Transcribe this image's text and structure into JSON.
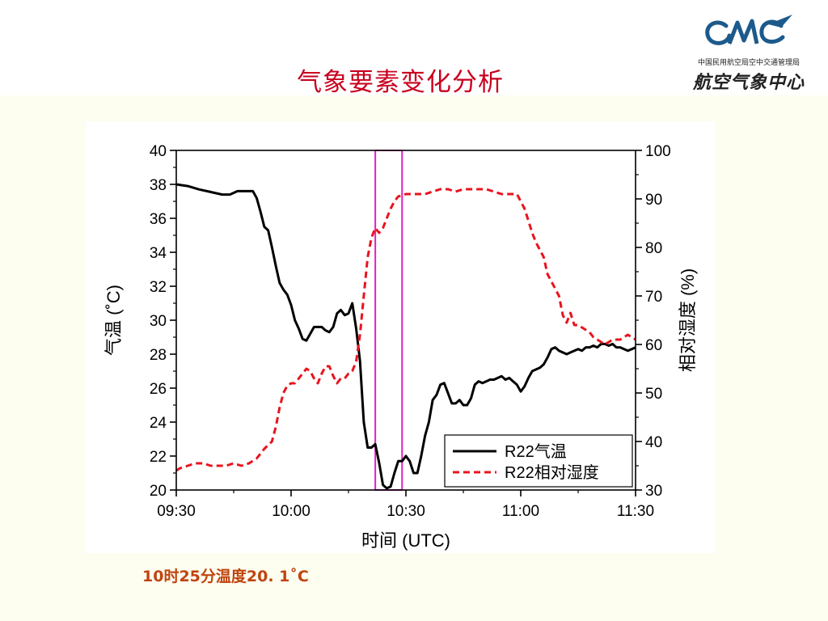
{
  "slide": {
    "title": "气象要素变化分析",
    "caption": "10时25分温度20. 1˚C"
  },
  "logo": {
    "subtitle": "中国民用航空局空中交通管理局",
    "name": "航空气象中心"
  },
  "colors": {
    "title": "#c8001e",
    "caption": "#c0440e",
    "temperature": "#000000",
    "humidity": "#e8141e",
    "highlight_box": "#e020c0",
    "logo_blue": "#1d5a8c"
  },
  "chart_data": {
    "type": "line",
    "title": "",
    "xlabel": "时间 (UTC)",
    "ylabel_left": "气温 (˚C)",
    "ylabel_right": "相对湿度 (%)",
    "x_ticks": [
      "09:30",
      "10:00",
      "10:30",
      "11:00",
      "11:30"
    ],
    "y_left_ticks": [
      "20",
      "22",
      "24",
      "26",
      "28",
      "30",
      "32",
      "34",
      "36",
      "38",
      "40"
    ],
    "y_right_ticks": [
      "30",
      "40",
      "50",
      "60",
      "70",
      "80",
      "90",
      "100"
    ],
    "xlim": [
      "09:30",
      "11:30"
    ],
    "ylim_left": [
      20,
      40
    ],
    "ylim_right": [
      30,
      100
    ],
    "legend_position": "bottom-right",
    "highlight_range": [
      "10:22",
      "10:29"
    ],
    "series": [
      {
        "name": "R22气温",
        "axis": "left",
        "style": "solid",
        "points": [
          [
            "09:30",
            38.0
          ],
          [
            "09:33",
            37.9
          ],
          [
            "09:36",
            37.7
          ],
          [
            "09:38",
            37.6
          ],
          [
            "09:40",
            37.5
          ],
          [
            "09:42",
            37.4
          ],
          [
            "09:44",
            37.4
          ],
          [
            "09:46",
            37.6
          ],
          [
            "09:48",
            37.6
          ],
          [
            "09:50",
            37.6
          ],
          [
            "09:51",
            37.2
          ],
          [
            "09:52",
            36.4
          ],
          [
            "09:53",
            35.5
          ],
          [
            "09:54",
            35.3
          ],
          [
            "09:55",
            34.3
          ],
          [
            "09:56",
            33.2
          ],
          [
            "09:57",
            32.2
          ],
          [
            "09:58",
            31.8
          ],
          [
            "09:59",
            31.5
          ],
          [
            "10:00",
            30.9
          ],
          [
            "10:01",
            30.0
          ],
          [
            "10:02",
            29.5
          ],
          [
            "10:03",
            28.9
          ],
          [
            "10:04",
            28.8
          ],
          [
            "10:05",
            29.2
          ],
          [
            "10:06",
            29.6
          ],
          [
            "10:08",
            29.6
          ],
          [
            "10:09",
            29.4
          ],
          [
            "10:10",
            29.3
          ],
          [
            "10:11",
            29.6
          ],
          [
            "10:12",
            30.4
          ],
          [
            "10:13",
            30.6
          ],
          [
            "10:14",
            30.3
          ],
          [
            "10:15",
            30.4
          ],
          [
            "10:16",
            31.0
          ],
          [
            "10:17",
            29.5
          ],
          [
            "10:18",
            27.6
          ],
          [
            "10:19",
            24.0
          ],
          [
            "10:20",
            22.5
          ],
          [
            "10:21",
            22.5
          ],
          [
            "10:22",
            22.7
          ],
          [
            "10:23",
            21.6
          ],
          [
            "10:24",
            20.3
          ],
          [
            "10:25",
            20.1
          ],
          [
            "10:26",
            20.2
          ],
          [
            "10:27",
            21.0
          ],
          [
            "10:28",
            21.7
          ],
          [
            "10:29",
            21.7
          ],
          [
            "10:30",
            22.0
          ],
          [
            "10:31",
            21.7
          ],
          [
            "10:32",
            21.0
          ],
          [
            "10:33",
            21.0
          ],
          [
            "10:34",
            22.0
          ],
          [
            "10:35",
            23.2
          ],
          [
            "10:36",
            24.0
          ],
          [
            "10:37",
            25.3
          ],
          [
            "10:38",
            25.6
          ],
          [
            "10:39",
            26.2
          ],
          [
            "10:40",
            26.3
          ],
          [
            "10:41",
            25.7
          ],
          [
            "10:42",
            25.1
          ],
          [
            "10:43",
            25.1
          ],
          [
            "10:44",
            25.3
          ],
          [
            "10:45",
            25.0
          ],
          [
            "10:46",
            25.0
          ],
          [
            "10:47",
            25.4
          ],
          [
            "10:48",
            26.2
          ],
          [
            "10:49",
            26.4
          ],
          [
            "10:50",
            26.3
          ],
          [
            "10:51",
            26.4
          ],
          [
            "10:52",
            26.5
          ],
          [
            "10:53",
            26.5
          ],
          [
            "10:54",
            26.6
          ],
          [
            "10:55",
            26.7
          ],
          [
            "10:56",
            26.5
          ],
          [
            "10:57",
            26.6
          ],
          [
            "10:58",
            26.4
          ],
          [
            "10:59",
            26.2
          ],
          [
            "11:00",
            25.8
          ],
          [
            "11:01",
            26.1
          ],
          [
            "11:02",
            26.6
          ],
          [
            "11:03",
            27.0
          ],
          [
            "11:04",
            27.1
          ],
          [
            "11:05",
            27.2
          ],
          [
            "11:06",
            27.4
          ],
          [
            "11:07",
            27.8
          ],
          [
            "11:08",
            28.3
          ],
          [
            "11:09",
            28.4
          ],
          [
            "11:10",
            28.2
          ],
          [
            "11:12",
            28.0
          ],
          [
            "11:13",
            28.1
          ],
          [
            "11:14",
            28.2
          ],
          [
            "11:15",
            28.3
          ],
          [
            "11:16",
            28.2
          ],
          [
            "11:17",
            28.4
          ],
          [
            "11:18",
            28.4
          ],
          [
            "11:19",
            28.5
          ],
          [
            "11:20",
            28.4
          ],
          [
            "11:21",
            28.6
          ],
          [
            "11:22",
            28.6
          ],
          [
            "11:23",
            28.5
          ],
          [
            "11:24",
            28.6
          ],
          [
            "11:25",
            28.4
          ],
          [
            "11:26",
            28.4
          ],
          [
            "11:27",
            28.3
          ],
          [
            "11:28",
            28.2
          ],
          [
            "11:29",
            28.3
          ],
          [
            "11:30",
            28.4
          ]
        ]
      },
      {
        "name": "R22相对湿度",
        "axis": "right",
        "style": "dashed",
        "points": [
          [
            "09:30",
            34
          ],
          [
            "09:31",
            34.5
          ],
          [
            "09:33",
            35
          ],
          [
            "09:35",
            35.5
          ],
          [
            "09:37",
            35.5
          ],
          [
            "09:39",
            35
          ],
          [
            "09:41",
            35
          ],
          [
            "09:43",
            35
          ],
          [
            "09:45",
            35.5
          ],
          [
            "09:47",
            35
          ],
          [
            "09:49",
            35.5
          ],
          [
            "09:51",
            36.5
          ],
          [
            "09:53",
            38.5
          ],
          [
            "09:55",
            40
          ],
          [
            "09:56",
            43
          ],
          [
            "09:57",
            47
          ],
          [
            "09:58",
            50
          ],
          [
            "09:59",
            51.5
          ],
          [
            "10:00",
            52
          ],
          [
            "10:01",
            52
          ],
          [
            "10:02",
            53
          ],
          [
            "10:03",
            54
          ],
          [
            "10:04",
            55
          ],
          [
            "10:05",
            54.5
          ],
          [
            "10:06",
            53
          ],
          [
            "10:07",
            52
          ],
          [
            "10:08",
            54
          ],
          [
            "10:09",
            55.5
          ],
          [
            "10:10",
            55.5
          ],
          [
            "10:11",
            53.5
          ],
          [
            "10:12",
            52
          ],
          [
            "10:13",
            53
          ],
          [
            "10:14",
            53
          ],
          [
            "10:15",
            54
          ],
          [
            "10:16",
            54.5
          ],
          [
            "10:17",
            56.5
          ],
          [
            "10:18",
            62
          ],
          [
            "10:19",
            70
          ],
          [
            "10:20",
            78
          ],
          [
            "10:21",
            82
          ],
          [
            "10:22",
            84
          ],
          [
            "10:23",
            83
          ],
          [
            "10:24",
            84
          ],
          [
            "10:25",
            86
          ],
          [
            "10:26",
            88
          ],
          [
            "10:27",
            89.5
          ],
          [
            "10:28",
            90.5
          ],
          [
            "10:30",
            91
          ],
          [
            "10:33",
            91
          ],
          [
            "10:35",
            91
          ],
          [
            "10:37",
            91.5
          ],
          [
            "10:39",
            92
          ],
          [
            "10:41",
            92
          ],
          [
            "10:43",
            91.5
          ],
          [
            "10:45",
            92
          ],
          [
            "10:47",
            92
          ],
          [
            "10:49",
            92
          ],
          [
            "10:51",
            92
          ],
          [
            "10:53",
            91.5
          ],
          [
            "10:55",
            91
          ],
          [
            "10:57",
            91
          ],
          [
            "10:59",
            91
          ],
          [
            "11:00",
            89.5
          ],
          [
            "11:01",
            88
          ],
          [
            "11:02",
            85.5
          ],
          [
            "11:03",
            83
          ],
          [
            "11:04",
            81
          ],
          [
            "11:05",
            79.5
          ],
          [
            "11:06",
            78
          ],
          [
            "11:07",
            74.5
          ],
          [
            "11:08",
            73
          ],
          [
            "11:09",
            71.5
          ],
          [
            "11:10",
            70
          ],
          [
            "11:11",
            66
          ],
          [
            "11:12",
            64.5
          ],
          [
            "11:13",
            66.5
          ],
          [
            "11:14",
            64
          ],
          [
            "11:15",
            64
          ],
          [
            "11:16",
            63.5
          ],
          [
            "11:17",
            63
          ],
          [
            "11:18",
            62.5
          ],
          [
            "11:19",
            61.5
          ],
          [
            "11:20",
            61
          ],
          [
            "11:21",
            60.5
          ],
          [
            "11:22",
            60
          ],
          [
            "11:23",
            60.5
          ],
          [
            "11:24",
            61
          ],
          [
            "11:25",
            61
          ],
          [
            "11:26",
            61
          ],
          [
            "11:27",
            61.5
          ],
          [
            "11:28",
            62
          ],
          [
            "11:29",
            61.5
          ],
          [
            "11:30",
            61
          ]
        ]
      }
    ]
  }
}
